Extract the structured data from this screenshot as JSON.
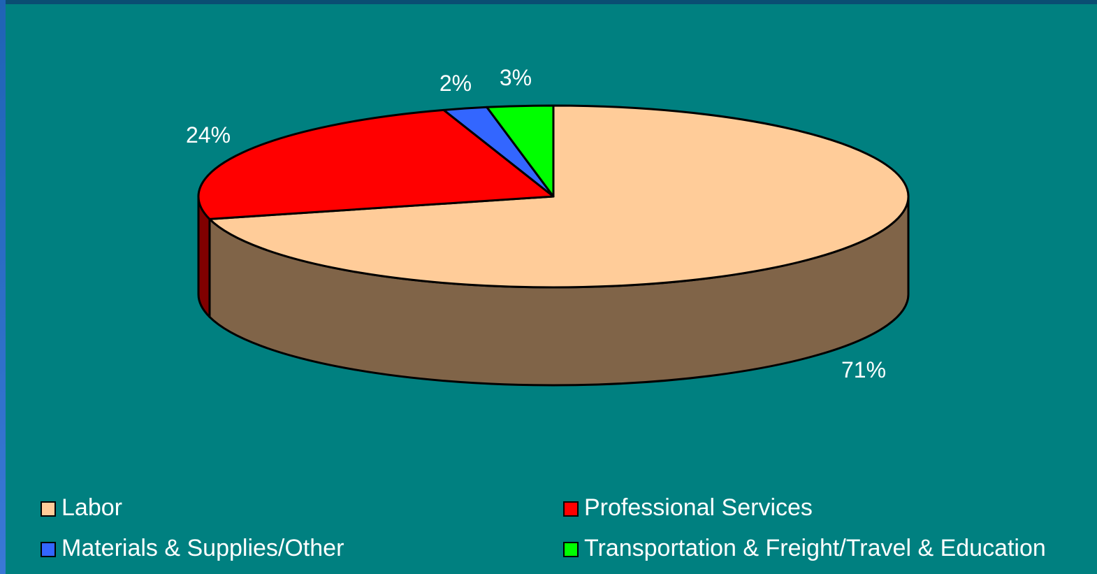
{
  "chart_data": {
    "type": "pie",
    "style": "3d",
    "slices": [
      {
        "label": "Labor",
        "value": 71,
        "display": "71%",
        "color": "#FFCC99",
        "side_color": "#806448"
      },
      {
        "label": "Professional Services",
        "value": 24,
        "display": "24%",
        "color": "#FF0000",
        "side_color": "#800000"
      },
      {
        "label": "Materials & Supplies/Other",
        "value": 2,
        "display": "2%",
        "color": "#3366FF",
        "side_color": "#1a3380"
      },
      {
        "label": "Transportation & Freight/Travel & Education",
        "value": 3,
        "display": "3%",
        "color": "#00FF00",
        "side_color": "#008000"
      }
    ],
    "legend": {
      "position": "bottom",
      "columns": 2
    }
  }
}
